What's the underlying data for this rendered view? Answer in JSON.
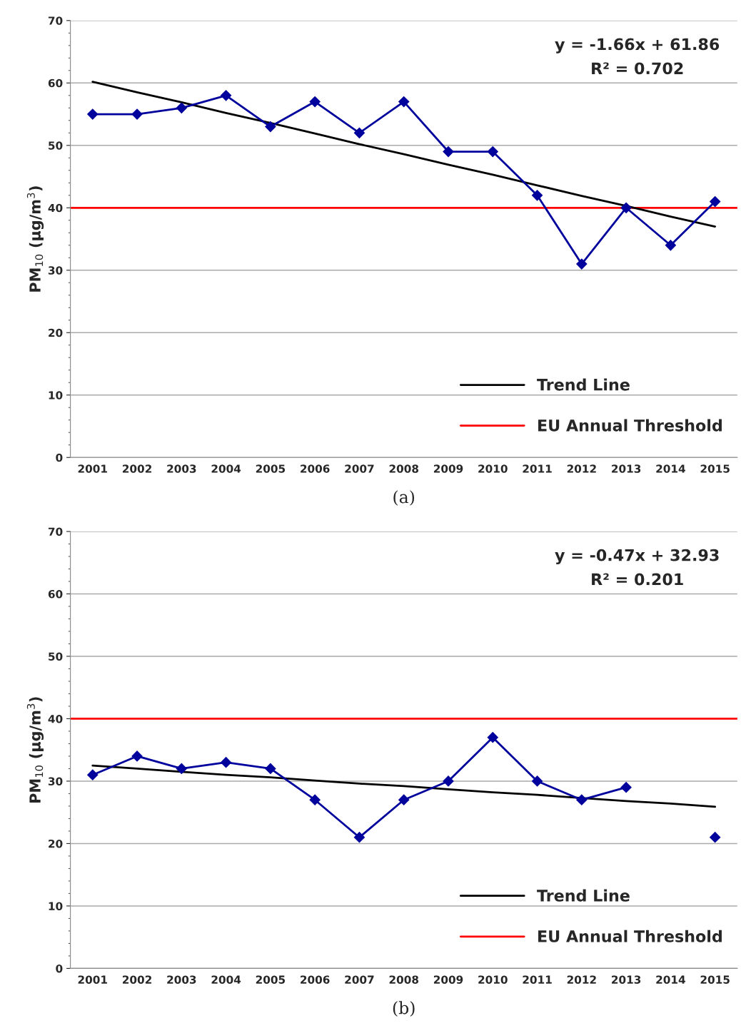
{
  "chart_data": [
    {
      "type": "line",
      "ylabel": "PM$_{10}$ (µg/m$^{3}$)",
      "categories": [
        "2001",
        "2002",
        "2003",
        "2004",
        "2005",
        "2006",
        "2007",
        "2008",
        "2009",
        "2010",
        "2011",
        "2012",
        "2013",
        "2014",
        "2015"
      ],
      "series": [
        {
          "name": null,
          "color": "#00009c",
          "marker": "diamond",
          "values": [
            55,
            55,
            56,
            58,
            53,
            57,
            52,
            57,
            49,
            49,
            42,
            31,
            40,
            34,
            41
          ]
        },
        {
          "name": "Trend Line",
          "color": "#000000",
          "marker": "none",
          "values": [
            60.2,
            58.5,
            56.9,
            55.2,
            53.6,
            51.9,
            50.2,
            48.6,
            46.9,
            45.3,
            43.6,
            41.9,
            40.3,
            38.6,
            37.0
          ]
        }
      ],
      "ref_lines": [
        {
          "axis": "y",
          "value": 40,
          "label": "EU Annual Threshold",
          "color": "#ff0000"
        }
      ],
      "ylim": [
        0,
        70
      ],
      "yticks": [
        0,
        10,
        20,
        30,
        40,
        50,
        60,
        70
      ],
      "grid": "y",
      "legend": "bottom right",
      "annotations": [
        "y = -1.66x + 61.86",
        "R² = 0.702",
        "(a)"
      ]
    },
    {
      "type": "line",
      "ylabel": "PM$_{10}$ (µg/m$^{3}$)",
      "categories": [
        "2001",
        "2002",
        "2003",
        "2004",
        "2005",
        "2006",
        "2007",
        "2008",
        "2009",
        "2010",
        "2011",
        "2012",
        "2013",
        "2014",
        "2015"
      ],
      "series": [
        {
          "name": null,
          "color": "#00009c",
          "marker": "diamond",
          "values": [
            31,
            34,
            32,
            33,
            32,
            27,
            21,
            27,
            30,
            37,
            30,
            27,
            29,
            null,
            21
          ]
        },
        {
          "name": "Trend Line",
          "color": "#000000",
          "marker": "none",
          "values": [
            32.5,
            32.0,
            31.5,
            31.0,
            30.6,
            30.1,
            29.6,
            29.2,
            28.7,
            28.2,
            27.8,
            27.3,
            26.8,
            26.4,
            25.9
          ]
        }
      ],
      "ref_lines": [
        {
          "axis": "y",
          "value": 40,
          "label": "EU Annual Threshold",
          "color": "#ff0000"
        }
      ],
      "ylim": [
        0,
        70
      ],
      "yticks": [
        0,
        10,
        20,
        30,
        40,
        50,
        60,
        70
      ],
      "grid": "y",
      "legend": "bottom right",
      "annotations": [
        "y = -0.47x + 32.93",
        "R² = 0.201",
        "(b)"
      ]
    }
  ]
}
